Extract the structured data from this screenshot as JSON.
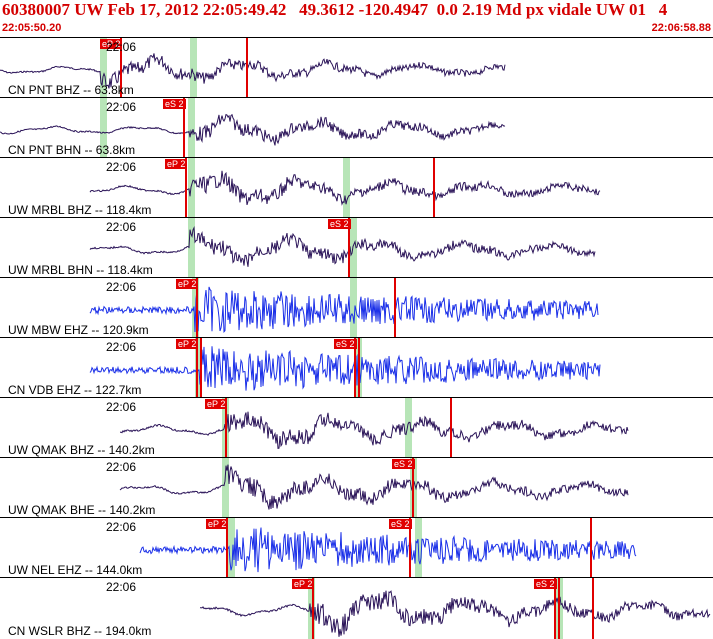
{
  "header": {
    "title": "60380007 UW Feb 17, 2012 22:05:49.42   49.3612 -120.4947  0.0 2.19 Md px vidale UW 01   4",
    "time_start": "22:05:50.20",
    "time_end": "22:06:58.88"
  },
  "traces": [
    {
      "label": "CN PNT BHZ -- 63.8km",
      "time": "22:06",
      "color": "#2a1358",
      "picks": [
        {
          "name": "eP 2"
        }
      ]
    },
    {
      "label": "CN PNT BHN -- 63.8km",
      "time": "22:06",
      "color": "#2a1358",
      "picks": [
        {
          "name": "eS 2"
        }
      ]
    },
    {
      "label": "UW MRBL BHZ -- 118.4km",
      "time": "22:06",
      "color": "#2a1358",
      "picks": [
        {
          "name": "eP 2"
        }
      ]
    },
    {
      "label": "UW MRBL BHN -- 118.4km",
      "time": "22:06",
      "color": "#2a1358",
      "picks": [
        {
          "name": "eS 2"
        }
      ]
    },
    {
      "label": "UW MBW EHZ -- 120.9km",
      "time": "22:06",
      "color": "#1a2fe8",
      "picks": [
        {
          "name": "eP 2"
        }
      ]
    },
    {
      "label": "CN VDB EHZ -- 122.7km",
      "time": "22:06",
      "color": "#1a2fe8",
      "picks": [
        {
          "name": "eP 2"
        },
        {
          "name": "eS 2"
        }
      ]
    },
    {
      "label": "UW QMAK BHZ -- 140.2km",
      "time": "22:06",
      "color": "#2a1358",
      "picks": [
        {
          "name": "eP 2"
        }
      ]
    },
    {
      "label": "UW QMAK BHE -- 140.2km",
      "time": "22:06",
      "color": "#2a1358",
      "picks": [
        {
          "name": "eS 2"
        }
      ]
    },
    {
      "label": "UW NEL EHZ -- 144.0km",
      "time": "22:06",
      "color": "#1a2fe8",
      "picks": [
        {
          "name": "eP 2"
        },
        {
          "name": "eS 2"
        }
      ]
    },
    {
      "label": "CN WSLR BHZ -- 194.0km",
      "time": "22:06",
      "color": "#2a1358",
      "picks": [
        {
          "name": "eP 2"
        },
        {
          "name": "eS 2"
        }
      ]
    }
  ]
}
